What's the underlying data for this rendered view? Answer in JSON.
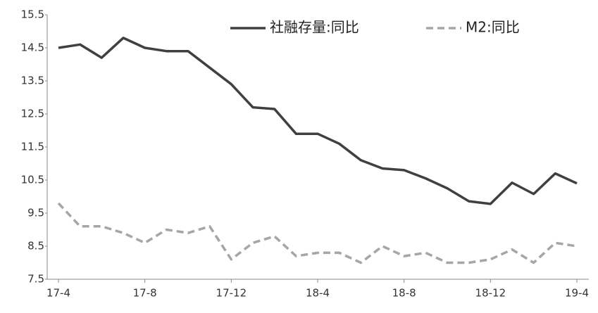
{
  "chart_data": {
    "type": "line",
    "categories": [
      "17-4",
      null,
      null,
      null,
      "17-8",
      null,
      null,
      null,
      "17-12",
      null,
      null,
      null,
      "18-4",
      null,
      null,
      null,
      "18-8",
      null,
      null,
      null,
      "18-12",
      null,
      null,
      null,
      "19-4"
    ],
    "series": [
      {
        "name": "社融存量:同比",
        "color": "#404040",
        "dash": false,
        "values": [
          14.5,
          14.6,
          14.2,
          14.8,
          14.5,
          14.4,
          14.4,
          13.9,
          13.4,
          12.7,
          12.65,
          11.9,
          11.9,
          11.6,
          11.1,
          10.85,
          10.8,
          10.55,
          10.25,
          9.86,
          9.78,
          10.42,
          10.08,
          10.7,
          10.4
        ]
      },
      {
        "name": "M2:同比",
        "color": "#a6a6a6",
        "dash": true,
        "values": [
          9.8,
          9.1,
          9.1,
          8.9,
          8.6,
          9.0,
          8.9,
          9.1,
          8.1,
          8.6,
          8.8,
          8.2,
          8.3,
          8.3,
          8.0,
          8.5,
          8.2,
          8.3,
          8.0,
          8.0,
          8.1,
          8.4,
          8.0,
          8.6,
          8.5
        ]
      }
    ],
    "ylim": [
      7.5,
      15.5
    ],
    "yticks": [
      7.5,
      8.5,
      9.5,
      10.5,
      11.5,
      12.5,
      13.5,
      14.5,
      15.5
    ],
    "grid": false,
    "legend": "top"
  }
}
